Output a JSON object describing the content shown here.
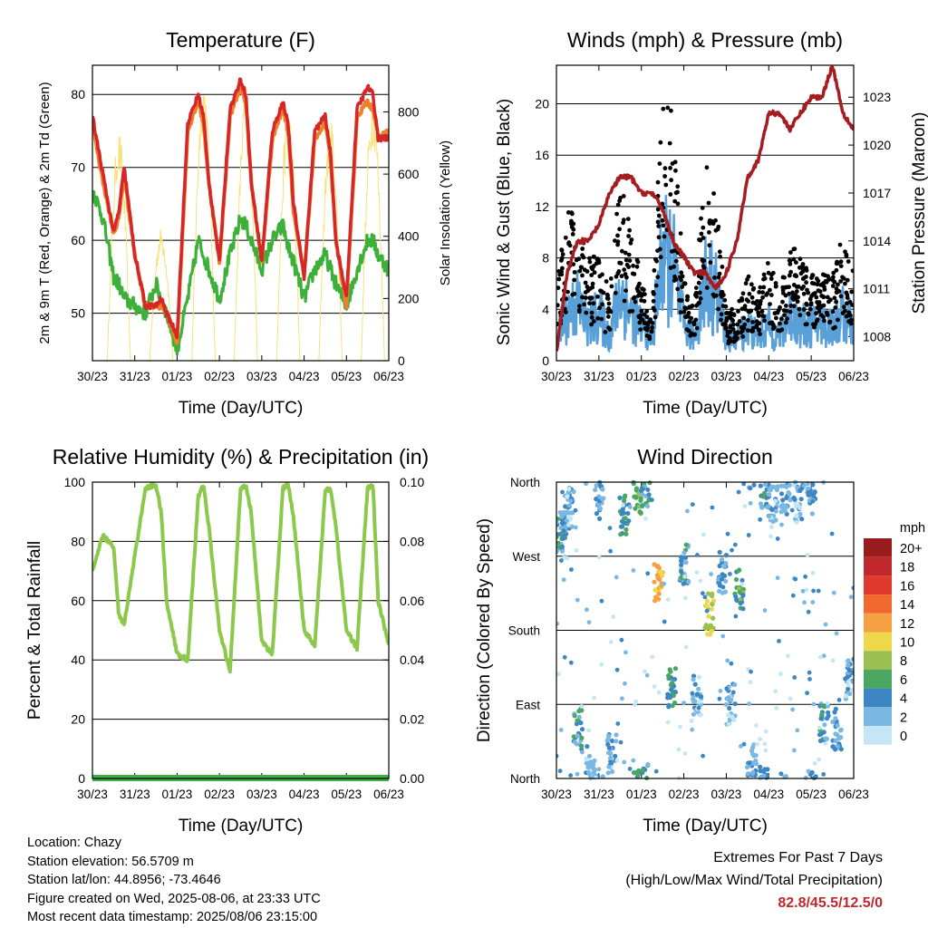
{
  "colors": {
    "temp_2m": "#d62728",
    "temp_9m": "#f07f2b",
    "dewpoint": "#3db03a",
    "solar": "#f5e27a",
    "wind": "#5aa0d8",
    "gust": "#000000",
    "pressure": "#a51d20",
    "rh": "#8cc84b",
    "precip": "#3fae49",
    "extremes_value": "#c0282d"
  },
  "x_ticks": [
    "30/23",
    "31/23",
    "01/23",
    "02/23",
    "03/23",
    "04/23",
    "05/23",
    "06/23"
  ],
  "chart_data": [
    {
      "id": "temperature",
      "type": "line",
      "title": "Temperature (F)",
      "xlabel": "Time (Day/UTC)",
      "ylabel": "2m & 9m T (Red, Orange) & 2m Td (Green)",
      "ylabel_right": "Solar Insolation (Yellow)",
      "ylim": [
        43.5,
        84
      ],
      "yticks": [
        50,
        60,
        70,
        80
      ],
      "ylim_right": [
        0,
        950
      ],
      "yticks_right": [
        0,
        200,
        400,
        600,
        800
      ],
      "x": [
        0,
        0.25,
        0.5,
        0.625,
        0.75,
        1.0,
        1.25,
        1.5,
        1.625,
        1.75,
        2.0,
        2.25,
        2.5,
        2.625,
        2.75,
        3.0,
        3.25,
        3.5,
        3.625,
        3.75,
        4.0,
        4.25,
        4.5,
        4.625,
        4.75,
        5.0,
        5.25,
        5.5,
        5.625,
        5.75,
        6.0,
        6.25,
        6.5,
        6.625,
        6.75,
        7.0
      ],
      "series": [
        {
          "name": "2m T",
          "values": [
            77,
            69,
            61,
            64,
            70,
            58,
            51,
            51,
            52,
            50,
            47,
            76,
            80,
            77,
            68,
            57,
            78,
            82,
            80,
            68,
            57,
            75,
            79,
            76,
            65,
            55,
            75,
            77,
            72,
            60,
            52,
            78,
            81,
            80,
            74,
            74
          ]
        },
        {
          "name": "9m T",
          "values": [
            76,
            68,
            61,
            63,
            69,
            58,
            51,
            51,
            51,
            50,
            46,
            75,
            79,
            76,
            68,
            57,
            77,
            81,
            79,
            68,
            57,
            74,
            78,
            75,
            64,
            55,
            74,
            76,
            71,
            60,
            51,
            77,
            79,
            78,
            74,
            75
          ]
        },
        {
          "name": "2m Td",
          "values": [
            67,
            63,
            55,
            54,
            52,
            51,
            50,
            54,
            52,
            50,
            45,
            52,
            60,
            58,
            56,
            52,
            58,
            63,
            62,
            60,
            56,
            60,
            62,
            59,
            57,
            52,
            56,
            58,
            56,
            54,
            51,
            56,
            60,
            60,
            58,
            56
          ]
        },
        {
          "name": "Solar",
          "values": [
            0,
            0,
            0,
            600,
            740,
            0,
            0,
            0,
            320,
            430,
            0,
            0,
            0,
            720,
            920,
            0,
            0,
            0,
            820,
            890,
            0,
            0,
            0,
            810,
            830,
            0,
            0,
            0,
            770,
            790,
            0,
            0,
            0,
            850,
            860,
            0
          ]
        }
      ]
    },
    {
      "id": "wind_pressure",
      "type": "scatter",
      "title": "Winds (mph) & Pressure (mb)",
      "xlabel": "Time (Day/UTC)",
      "ylabel": "Sonic Wind & Gust (Blue, Black)",
      "ylabel_right": "Station Pressure (Maroon)",
      "ylim": [
        0,
        23
      ],
      "yticks": [
        0,
        4,
        8,
        12,
        16,
        20
      ],
      "ylim_right": [
        1006.5,
        1025
      ],
      "yticks_right": [
        1008,
        1011,
        1014,
        1017,
        1020,
        1023
      ],
      "x": [
        0,
        0.25,
        0.5,
        0.75,
        1.0,
        1.25,
        1.5,
        1.75,
        2.0,
        2.25,
        2.5,
        2.75,
        3.0,
        3.25,
        3.5,
        3.75,
        4.0,
        4.25,
        4.5,
        4.75,
        5.0,
        5.25,
        5.5,
        5.75,
        6.0,
        6.25,
        6.5,
        6.75,
        7.0
      ],
      "series": [
        {
          "name": "Wind",
          "values": [
            2,
            4,
            5,
            3,
            4,
            2,
            6,
            4,
            3,
            2,
            9,
            8,
            3,
            2,
            7,
            6,
            2,
            2,
            3,
            2,
            3,
            2,
            4,
            3,
            3,
            3,
            3,
            4,
            3
          ]
        },
        {
          "name": "Gust",
          "values": [
            4,
            9,
            8,
            6,
            6,
            4,
            11,
            8,
            5,
            3,
            16,
            14,
            5,
            3,
            12,
            10,
            3,
            3,
            5,
            4,
            6,
            4,
            7,
            6,
            5,
            5,
            5,
            8,
            5
          ]
        },
        {
          "name": "Pressure",
          "values": [
            1007,
            1012,
            1014,
            1014,
            1015,
            1017,
            1018,
            1018,
            1017,
            1017,
            1016,
            1014,
            1013,
            1012,
            1012,
            1011,
            1012,
            1014,
            1018,
            1019,
            1022,
            1022,
            1021,
            1022,
            1023,
            1023,
            1025,
            1022,
            1021
          ]
        }
      ]
    },
    {
      "id": "humidity_precip",
      "type": "line",
      "title": "Relative Humidity (%) & Precipitation (in)",
      "xlabel": "Time (Day/UTC)",
      "ylabel": "Percent & Total Rainfall",
      "ylim": [
        0,
        100
      ],
      "yticks": [
        0,
        20,
        40,
        60,
        80,
        100
      ],
      "ylim_right": [
        0,
        0.1
      ],
      "yticks_right": [
        "0.00",
        "0.02",
        "0.04",
        "0.06",
        "0.08",
        "0.10"
      ],
      "x": [
        0,
        0.25,
        0.5,
        0.625,
        0.75,
        1.0,
        1.25,
        1.5,
        1.625,
        1.75,
        2.0,
        2.25,
        2.5,
        2.625,
        2.75,
        3.0,
        3.25,
        3.5,
        3.625,
        3.75,
        4.0,
        4.25,
        4.5,
        4.625,
        4.75,
        5.0,
        5.25,
        5.5,
        5.625,
        5.75,
        6.0,
        6.25,
        6.5,
        6.625,
        6.75,
        7.0
      ],
      "series": [
        {
          "name": "RH",
          "values": [
            70,
            82,
            78,
            55,
            52,
            75,
            98,
            99,
            90,
            60,
            42,
            40,
            95,
            99,
            85,
            50,
            36,
            98,
            99,
            90,
            46,
            42,
            98,
            99,
            88,
            50,
            45,
            97,
            98,
            85,
            50,
            44,
            98,
            99,
            60,
            45
          ]
        },
        {
          "name": "Precip",
          "values": [
            0,
            0,
            0,
            0,
            0,
            0,
            0,
            0,
            0,
            0,
            0,
            0,
            0,
            0,
            0,
            0,
            0,
            0,
            0,
            0,
            0,
            0,
            0,
            0,
            0,
            0,
            0,
            0,
            0,
            0,
            0,
            0,
            0,
            0,
            0,
            0
          ]
        }
      ]
    },
    {
      "id": "wind_direction",
      "type": "scatter",
      "title": "Wind Direction",
      "xlabel": "Time (Day/UTC)",
      "ylabel": "Direction (Colored By Speed)",
      "yticks": [
        "North",
        "East",
        "South",
        "West",
        "North"
      ],
      "ylim": [
        0,
        360
      ],
      "colorbar": {
        "title": "mph",
        "labels": [
          "20+",
          "18",
          "16",
          "14",
          "12",
          "10",
          "8",
          "6",
          "4",
          "2",
          "0"
        ],
        "colors": [
          "#981b1e",
          "#c0282d",
          "#e03a2e",
          "#f2692f",
          "#f5a043",
          "#ecd84a",
          "#99c050",
          "#4aa661",
          "#3d86c4",
          "#7ab8e3",
          "#c6e6f6"
        ]
      },
      "x": [
        0.1,
        0.2,
        0.3,
        0.5,
        0.8,
        1.0,
        1.3,
        1.6,
        1.9,
        2.1,
        2.4,
        2.7,
        3.0,
        3.3,
        3.6,
        3.9,
        4.1,
        4.3,
        4.6,
        4.9,
        5.1,
        5.4,
        5.7,
        6.0,
        6.3,
        6.6,
        6.9
      ],
      "values": [
        300,
        320,
        330,
        60,
        20,
        340,
        30,
        320,
        345,
        355,
        240,
        110,
        260,
        100,
        200,
        250,
        90,
        230,
        15,
        350,
        330,
        345,
        335,
        345,
        70,
        60,
        120
      ],
      "speeds": [
        4,
        3,
        2,
        4,
        2,
        3,
        2,
        5,
        6,
        4,
        11,
        5,
        4,
        2,
        9,
        3,
        2,
        6,
        3,
        4,
        2,
        3,
        2,
        3,
        4,
        3,
        2
      ]
    }
  ],
  "info": {
    "location": "Location: Chazy",
    "elevation": "Station elevation: 56.5709 m",
    "latlon": "Station lat/lon: 44.8956; -73.4646",
    "created": "Figure created on Wed, 2025-08-06, at 23:33 UTC",
    "latest": "Most recent data timestamp: 2025/08/06 23:15:00"
  },
  "extremes": {
    "title": "Extremes For Past 7 Days",
    "subtitle": "(High/Low/Max Wind/Total Precipitation)",
    "value": "82.8/45.5/12.5/0"
  }
}
